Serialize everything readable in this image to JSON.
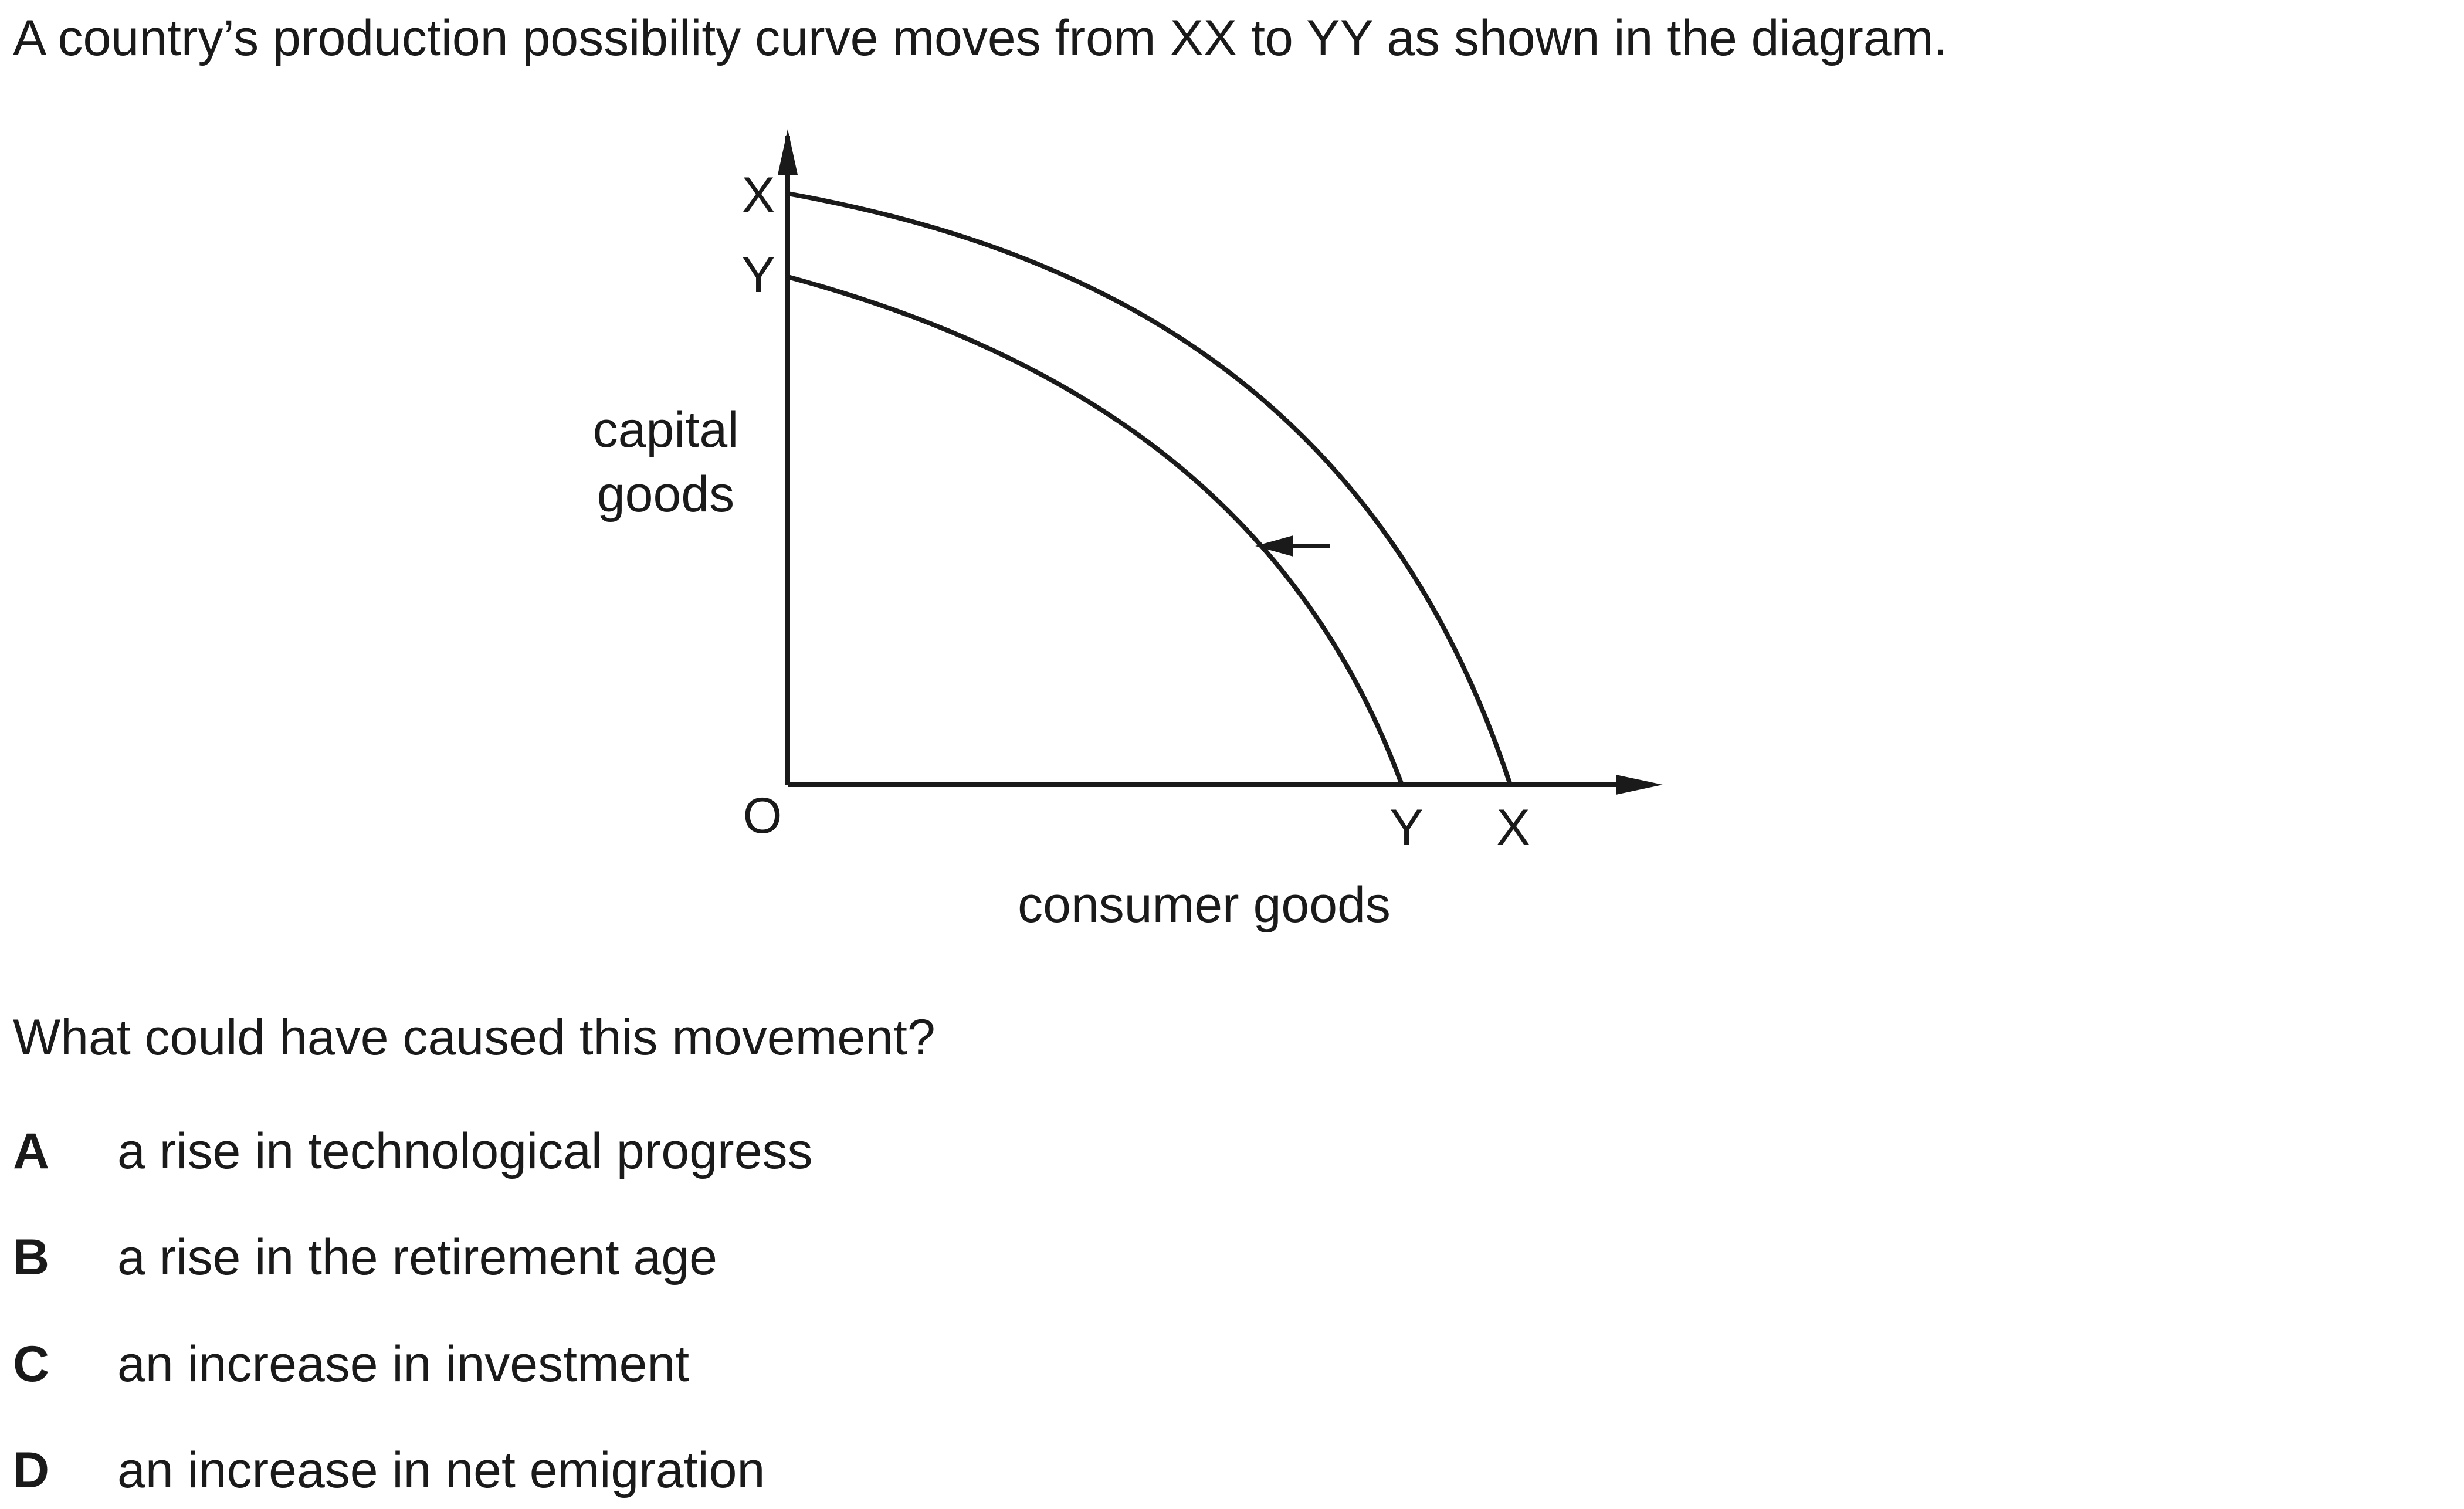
{
  "question": {
    "stem": "A country’s production possibility curve moves from XX to YY as shown in the diagram.",
    "prompt": "What could have caused this movement?",
    "options": [
      {
        "letter": "A",
        "text": "a rise in technological progress"
      },
      {
        "letter": "B",
        "text": "a rise in the retirement age"
      },
      {
        "letter": "C",
        "text": "an increase in investment"
      },
      {
        "letter": "D",
        "text": "an increase in net emigration"
      }
    ]
  },
  "diagram": {
    "y_axis_label_line1": "capital",
    "y_axis_label_line2": "goods",
    "x_axis_label": "consumer goods",
    "origin_label": "O",
    "y_axis_curve_labels": [
      "X",
      "Y"
    ],
    "x_axis_curve_labels": [
      "Y",
      "X"
    ],
    "curves": [
      "XX",
      "YY"
    ],
    "shift_direction": "inward",
    "line_color": "#1a1a1a"
  }
}
